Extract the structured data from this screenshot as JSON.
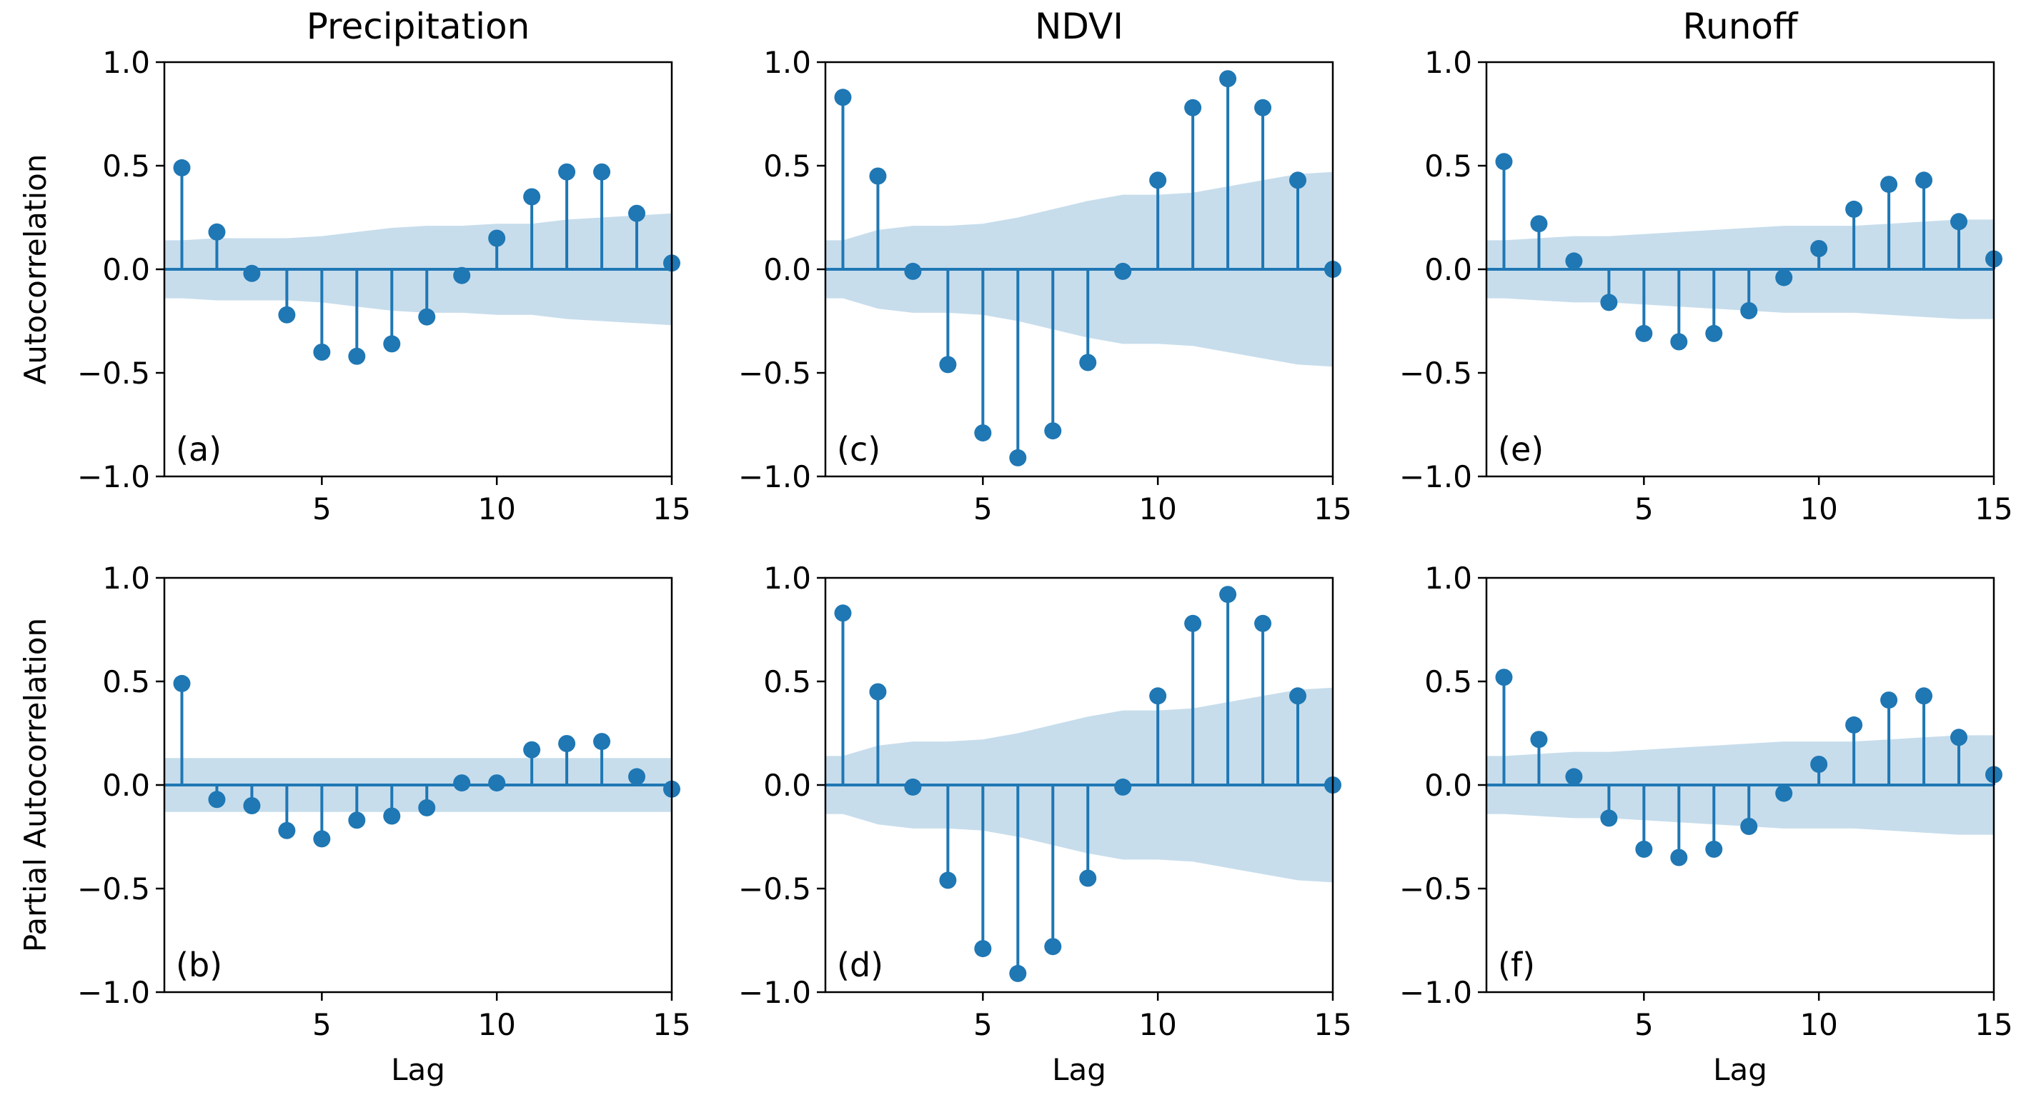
{
  "figure": {
    "colors": {
      "stem": "#1f77b4",
      "band": "#1f77b4",
      "axes": "#000000",
      "background": "#ffffff"
    },
    "column_titles": [
      "Precipitation",
      "NDVI",
      "Runoff"
    ],
    "row_ylabels": [
      "Autocorrelation",
      "Partial Autocorrelation"
    ],
    "xlabel": "Lag"
  },
  "chart_data": [
    {
      "type": "stem",
      "panel": "(a)",
      "title": "Precipitation",
      "ylabel": "Autocorrelation",
      "xlabel": "",
      "xlim": [
        0.5,
        15
      ],
      "ylim": [
        -1.0,
        1.0
      ],
      "xticks": [
        5,
        10,
        15
      ],
      "yticks": [
        -1.0,
        -0.5,
        0.0,
        0.5,
        1.0
      ],
      "x": [
        1,
        2,
        3,
        4,
        5,
        6,
        7,
        8,
        9,
        10,
        11,
        12,
        13,
        14,
        15
      ],
      "values": [
        0.49,
        0.18,
        -0.02,
        -0.22,
        -0.4,
        -0.42,
        -0.36,
        -0.23,
        -0.03,
        0.15,
        0.35,
        0.47,
        0.47,
        0.27,
        0.03
      ],
      "confidence_band": [
        0.14,
        0.15,
        0.15,
        0.15,
        0.16,
        0.18,
        0.2,
        0.21,
        0.21,
        0.22,
        0.22,
        0.24,
        0.25,
        0.26,
        0.27
      ]
    },
    {
      "type": "stem",
      "panel": "(b)",
      "title": "",
      "ylabel": "Partial Autocorrelation",
      "xlabel": "Lag",
      "xlim": [
        0.5,
        15
      ],
      "ylim": [
        -1.0,
        1.0
      ],
      "xticks": [
        5,
        10,
        15
      ],
      "yticks": [
        -1.0,
        -0.5,
        0.0,
        0.5,
        1.0
      ],
      "x": [
        1,
        2,
        3,
        4,
        5,
        6,
        7,
        8,
        9,
        10,
        11,
        12,
        13,
        14,
        15
      ],
      "values": [
        0.49,
        -0.07,
        -0.1,
        -0.22,
        -0.26,
        -0.17,
        -0.15,
        -0.11,
        0.01,
        0.01,
        0.17,
        0.2,
        0.21,
        0.04,
        -0.02
      ],
      "confidence_band": [
        0.13,
        0.13,
        0.13,
        0.13,
        0.13,
        0.13,
        0.13,
        0.13,
        0.13,
        0.13,
        0.13,
        0.13,
        0.13,
        0.13,
        0.13
      ]
    },
    {
      "type": "stem",
      "panel": "(c)",
      "title": "NDVI",
      "ylabel": "",
      "xlabel": "",
      "xlim": [
        0.5,
        15
      ],
      "ylim": [
        -1.0,
        1.0
      ],
      "xticks": [
        5,
        10,
        15
      ],
      "yticks": [
        -1.0,
        -0.5,
        0.0,
        0.5,
        1.0
      ],
      "x": [
        1,
        2,
        3,
        4,
        5,
        6,
        7,
        8,
        9,
        10,
        11,
        12,
        13,
        14,
        15
      ],
      "values": [
        0.83,
        0.45,
        -0.01,
        -0.46,
        -0.79,
        -0.91,
        -0.78,
        -0.45,
        -0.01,
        0.43,
        0.78,
        0.92,
        0.78,
        0.43,
        0.0
      ],
      "confidence_band": [
        0.14,
        0.19,
        0.21,
        0.21,
        0.22,
        0.25,
        0.29,
        0.33,
        0.36,
        0.36,
        0.37,
        0.4,
        0.43,
        0.46,
        0.47
      ]
    },
    {
      "type": "stem",
      "panel": "(d)",
      "title": "",
      "ylabel": "",
      "xlabel": "Lag",
      "xlim": [
        0.5,
        15
      ],
      "ylim": [
        -1.0,
        1.0
      ],
      "xticks": [
        5,
        10,
        15
      ],
      "yticks": [
        -1.0,
        -0.5,
        0.0,
        0.5,
        1.0
      ],
      "x": [
        1,
        2,
        3,
        4,
        5,
        6,
        7,
        8,
        9,
        10,
        11,
        12,
        13,
        14,
        15
      ],
      "values": [
        0.83,
        0.45,
        -0.01,
        -0.46,
        -0.79,
        -0.91,
        -0.78,
        -0.45,
        -0.01,
        0.43,
        0.78,
        0.92,
        0.78,
        0.43,
        0.0
      ],
      "confidence_band": [
        0.14,
        0.19,
        0.21,
        0.21,
        0.22,
        0.25,
        0.29,
        0.33,
        0.36,
        0.36,
        0.37,
        0.4,
        0.43,
        0.46,
        0.47
      ]
    },
    {
      "type": "stem",
      "panel": "(e)",
      "title": "Runoff",
      "ylabel": "",
      "xlabel": "",
      "xlim": [
        0.5,
        15
      ],
      "ylim": [
        -1.0,
        1.0
      ],
      "xticks": [
        5,
        10,
        15
      ],
      "yticks": [
        -1.0,
        -0.5,
        0.0,
        0.5,
        1.0
      ],
      "x": [
        1,
        2,
        3,
        4,
        5,
        6,
        7,
        8,
        9,
        10,
        11,
        12,
        13,
        14,
        15
      ],
      "values": [
        0.52,
        0.22,
        0.04,
        -0.16,
        -0.31,
        -0.35,
        -0.31,
        -0.2,
        -0.04,
        0.1,
        0.29,
        0.41,
        0.43,
        0.23,
        0.05
      ],
      "confidence_band": [
        0.14,
        0.15,
        0.16,
        0.16,
        0.17,
        0.18,
        0.19,
        0.2,
        0.21,
        0.21,
        0.21,
        0.22,
        0.23,
        0.24,
        0.24
      ]
    },
    {
      "type": "stem",
      "panel": "(f)",
      "title": "",
      "ylabel": "",
      "xlabel": "Lag",
      "xlim": [
        0.5,
        15
      ],
      "ylim": [
        -1.0,
        1.0
      ],
      "xticks": [
        5,
        10,
        15
      ],
      "yticks": [
        -1.0,
        -0.5,
        0.0,
        0.5,
        1.0
      ],
      "x": [
        1,
        2,
        3,
        4,
        5,
        6,
        7,
        8,
        9,
        10,
        11,
        12,
        13,
        14,
        15
      ],
      "values": [
        0.52,
        0.22,
        0.04,
        -0.16,
        -0.31,
        -0.35,
        -0.31,
        -0.2,
        -0.04,
        0.1,
        0.29,
        0.41,
        0.43,
        0.23,
        0.05
      ],
      "confidence_band": [
        0.14,
        0.15,
        0.16,
        0.16,
        0.17,
        0.18,
        0.19,
        0.2,
        0.21,
        0.21,
        0.21,
        0.22,
        0.23,
        0.24,
        0.24
      ]
    }
  ]
}
